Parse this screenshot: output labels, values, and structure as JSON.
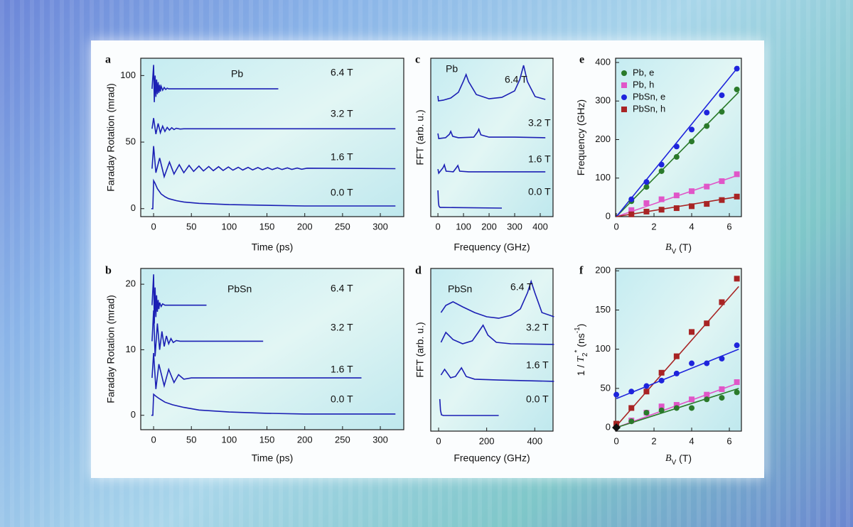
{
  "chart_data": [
    {
      "type": "line",
      "panel": "a",
      "annotation": "Pb",
      "y_label": "Faraday Rotation (mrad)",
      "x_label": "Time (ps)",
      "xlim": [
        -17,
        331
      ],
      "xticks": [
        0,
        50,
        100,
        150,
        200,
        250,
        300
      ],
      "ylim": [
        -6,
        113
      ],
      "yticks": [
        0,
        50,
        100
      ],
      "series": [
        {
          "name": "6.4 T",
          "x": [
            -2,
            0,
            1,
            2,
            3,
            4,
            5,
            6,
            7,
            8,
            9,
            10,
            12,
            14,
            16,
            18,
            20,
            25,
            30,
            40,
            60,
            100,
            165
          ],
          "values": [
            90,
            108,
            80,
            100,
            84,
            97,
            86,
            95,
            87,
            93,
            88,
            92,
            89,
            91,
            89.5,
            90.5,
            90,
            90,
            90,
            90,
            90,
            90,
            90
          ]
        },
        {
          "name": "3.2 T",
          "x": [
            -2,
            0,
            3,
            6,
            9,
            12,
            15,
            18,
            21,
            24,
            27,
            30,
            35,
            40,
            50,
            60,
            80,
            320
          ],
          "values": [
            60,
            68,
            56,
            64,
            57,
            62,
            58,
            61,
            59,
            60.8,
            59.4,
            60.4,
            59.8,
            60,
            60,
            60,
            60,
            60
          ]
        },
        {
          "name": "1.6 T",
          "x": [
            -2,
            0,
            3,
            8,
            14,
            21,
            27,
            34,
            40,
            47,
            53,
            60,
            66,
            73,
            79,
            86,
            92,
            99,
            105,
            112,
            118,
            125,
            131,
            138,
            144,
            151,
            157,
            164,
            170,
            177,
            183,
            190,
            196,
            203,
            320
          ],
          "values": [
            30,
            47,
            27,
            38,
            24,
            35,
            26,
            33,
            27,
            32.5,
            28,
            32,
            28.3,
            31.7,
            28.5,
            31.5,
            28.7,
            31.3,
            28.9,
            31.1,
            29,
            31,
            29.1,
            30.9,
            29.2,
            30.8,
            29.3,
            30.7,
            29.4,
            30.6,
            29.5,
            30.5,
            29.6,
            30.4,
            30
          ]
        },
        {
          "name": "0.0 T",
          "x": [
            -3,
            -1,
            0,
            2,
            5,
            10,
            15,
            20,
            30,
            40,
            60,
            80,
            100,
            150,
            200,
            250,
            320
          ],
          "values": [
            0,
            0,
            21,
            19,
            15,
            11,
            9,
            7.5,
            6,
            5,
            4,
            3.5,
            3,
            2.5,
            2,
            2,
            2
          ]
        }
      ]
    },
    {
      "type": "line",
      "panel": "b",
      "annotation": "PbSn",
      "y_label": "Faraday Rotation (mrad)",
      "x_label": "Time (ps)",
      "xlim": [
        -17,
        331
      ],
      "xticks": [
        0,
        50,
        100,
        150,
        200,
        250,
        300
      ],
      "ylim": [
        -2.2,
        22.4
      ],
      "yticks": [
        0,
        10,
        20
      ],
      "series": [
        {
          "name": "6.4 T",
          "x": [
            -2,
            0,
            1,
            2,
            3,
            4,
            5,
            6,
            7,
            8,
            10,
            12,
            15,
            20,
            70
          ],
          "values": [
            16.8,
            21.5,
            14,
            19.5,
            15,
            18.3,
            15.8,
            17.6,
            16.2,
            17.2,
            16.6,
            17,
            16.8,
            16.8,
            16.8
          ]
        },
        {
          "name": "3.2 T",
          "x": [
            -2,
            0,
            2,
            5,
            8,
            11,
            14,
            17,
            20,
            23,
            26,
            30,
            35,
            145
          ],
          "values": [
            11.3,
            16,
            9,
            14,
            10,
            12.8,
            10.5,
            12.1,
            10.9,
            11.7,
            11.1,
            11.4,
            11.3,
            11.3
          ]
        },
        {
          "name": "1.6 T",
          "x": [
            -2,
            0,
            3,
            7,
            14,
            20,
            27,
            33,
            40,
            50,
            60,
            275
          ],
          "values": [
            5.7,
            9.5,
            4,
            7.8,
            4.5,
            7,
            5,
            6.2,
            5.5,
            5.7,
            5.7,
            5.7
          ]
        },
        {
          "name": "0.0 T",
          "x": [
            -3,
            -1,
            0,
            3,
            8,
            15,
            25,
            40,
            60,
            100,
            150,
            200,
            320
          ],
          "values": [
            0,
            0,
            3.2,
            2.9,
            2.5,
            2,
            1.6,
            1.2,
            0.8,
            0.5,
            0.3,
            0.2,
            0.2
          ]
        }
      ]
    },
    {
      "type": "line",
      "panel": "c",
      "annotation": "Pb",
      "y_label": "FFT (arb. u.)",
      "x_label": "Frequency (GHz)",
      "xlim": [
        -28,
        450
      ],
      "xticks": [
        0,
        100,
        200,
        300,
        400
      ],
      "ylim": [
        0,
        100
      ],
      "series": [
        {
          "name": "6.4 T",
          "x": [
            0,
            2,
            20,
            50,
            80,
            100,
            110,
            120,
            150,
            200,
            250,
            300,
            320,
            335,
            350,
            380,
            420
          ],
          "values": [
            76.2,
            73.1,
            73.5,
            74.9,
            78.5,
            85.7,
            89.7,
            85.2,
            77.1,
            74.4,
            75.3,
            79.4,
            86.5,
            95.5,
            85.2,
            75.8,
            74.0
          ]
        },
        {
          "name": "3.2 T",
          "x": [
            0,
            3,
            30,
            45,
            50,
            58,
            80,
            140,
            155,
            160,
            168,
            200,
            300,
            420
          ],
          "values": [
            52.5,
            49.3,
            49.8,
            52.0,
            53.8,
            50.7,
            49.8,
            50.2,
            53.4,
            55.2,
            51.6,
            50.2,
            50.2,
            49.8
          ]
        },
        {
          "name": "1.6 T",
          "x": [
            0,
            3,
            20,
            25,
            32,
            60,
            72,
            78,
            85,
            120,
            420
          ],
          "values": [
            30.0,
            27.4,
            30.9,
            32.7,
            28.7,
            28.3,
            30.9,
            32.3,
            28.7,
            28.3,
            28.3
          ]
        },
        {
          "name": "0.0 T",
          "x": [
            0,
            2,
            4,
            8,
            20,
            250
          ],
          "values": [
            16.6,
            9.0,
            6.7,
            5.8,
            5.8,
            5.4
          ]
        }
      ]
    },
    {
      "type": "line",
      "panel": "d",
      "annotation": "PbSn",
      "y_label": "FFT (arb. u.)",
      "x_label": "Frequency (GHz)",
      "xlim": [
        -32.6,
        476
      ],
      "xticks": [
        0,
        200,
        400
      ],
      "ylim": [
        0,
        100
      ],
      "series": [
        {
          "name": "6.4 T",
          "x": [
            10,
            30,
            60,
            100,
            150,
            200,
            250,
            300,
            340,
            370,
            385,
            400,
            430,
            480
          ],
          "values": [
            72.9,
            77.3,
            79.5,
            76.4,
            72.9,
            70.3,
            69.4,
            71.2,
            75.1,
            85.2,
            92.1,
            85.2,
            72.9,
            70.3
          ]
        },
        {
          "name": "3.2 T",
          "x": [
            10,
            30,
            60,
            100,
            140,
            165,
            185,
            205,
            240,
            300,
            480
          ],
          "values": [
            54.6,
            60.7,
            56.3,
            53.7,
            55.5,
            60.7,
            65.1,
            59.0,
            54.6,
            53.7,
            53.3
          ]
        },
        {
          "name": "1.6 T",
          "x": [
            10,
            25,
            50,
            70,
            95,
            115,
            150,
            250,
            480
          ],
          "values": [
            34.5,
            38.0,
            32.8,
            33.6,
            38.9,
            33.6,
            31.9,
            31.4,
            30.6
          ]
        },
        {
          "name": "0.0 T",
          "x": [
            5,
            8,
            12,
            20,
            250
          ],
          "values": [
            19.7,
            12.7,
            10.0,
            9.6,
            9.6
          ]
        }
      ]
    },
    {
      "type": "scatter",
      "panel": "e",
      "y_label": [
        "Frequency (GHz)"
      ],
      "x_label": [
        "B",
        "V",
        " (T)"
      ],
      "legend": "upper left",
      "xlim": [
        -0.04,
        6.64
      ],
      "xticks": [
        0,
        2,
        4,
        6
      ],
      "ylim": [
        0,
        411
      ],
      "yticks": [
        0,
        100,
        200,
        300,
        400
      ],
      "series": [
        {
          "name": "Pb, e",
          "color": "#2a7a2a",
          "marker": "circle",
          "x": [
            0.8,
            1.6,
            2.4,
            3.2,
            4.0,
            4.8,
            5.6,
            6.4
          ],
          "values": [
            40,
            77,
            118,
            155,
            195,
            235,
            272,
            330
          ],
          "fit": {
            "x": [
              0,
              6.5
            ],
            "values": [
              0,
              323
            ]
          }
        },
        {
          "name": "Pb, h",
          "color": "#e056c8",
          "marker": "square",
          "x": [
            0.8,
            1.6,
            2.4,
            3.2,
            4.0,
            4.8,
            5.6,
            6.4
          ],
          "values": [
            17,
            35,
            45,
            55,
            66,
            78,
            92,
            110
          ],
          "fit": {
            "x": [
              0,
              6.5
            ],
            "values": [
              0,
              108
            ]
          }
        },
        {
          "name": "PbSn, e",
          "color": "#1e24dc",
          "marker": "circle",
          "x": [
            0.8,
            1.6,
            2.4,
            3.2,
            4.0,
            4.8,
            5.6,
            6.4
          ],
          "values": [
            45,
            90,
            135,
            182,
            226,
            270,
            315,
            384
          ],
          "fit": {
            "x": [
              0,
              6.5
            ],
            "values": [
              0,
              390
            ]
          }
        },
        {
          "name": "PbSn, h",
          "color": "#a82424",
          "marker": "square",
          "x": [
            0.8,
            1.6,
            2.4,
            3.2,
            4.0,
            4.8,
            5.6,
            6.4
          ],
          "values": [
            6,
            13,
            18,
            22,
            27,
            33,
            43,
            52
          ],
          "fit": {
            "x": [
              0,
              6.5
            ],
            "values": [
              0,
              52
            ]
          }
        }
      ]
    },
    {
      "type": "scatter",
      "panel": "f",
      "y_label": [
        "1 / ",
        "T",
        "2",
        "*",
        " (ns",
        "-1",
        ")"
      ],
      "x_label": [
        "B",
        "V",
        " (T)"
      ],
      "xlim": [
        -0.04,
        6.64
      ],
      "xticks": [
        0,
        2,
        4,
        6
      ],
      "ylim": [
        -4.5,
        203
      ],
      "yticks": [
        0,
        50,
        100,
        150,
        200
      ],
      "series": [
        {
          "color": "#a82424",
          "marker": "square",
          "x": [
            0,
            0.8,
            1.6,
            2.4,
            3.2,
            4.0,
            4.8,
            5.6,
            6.4
          ],
          "values": [
            5,
            25,
            46,
            70,
            91,
            122,
            133,
            160,
            190
          ],
          "fit": {
            "x": [
              0,
              6.5
            ],
            "values": [
              2,
              180
            ]
          }
        },
        {
          "color": "#1e24dc",
          "marker": "circle",
          "x": [
            0,
            0.8,
            1.6,
            2.4,
            3.2,
            4.0,
            4.8,
            5.6,
            6.4
          ],
          "values": [
            42,
            46,
            53,
            60,
            69,
            82,
            82,
            88,
            105
          ],
          "fit": {
            "x": [
              0,
              6.5
            ],
            "values": [
              37,
              100
            ]
          }
        },
        {
          "color": "#e056c8",
          "marker": "square",
          "x": [
            0.8,
            1.6,
            2.4,
            3.2,
            4.0,
            4.8,
            5.6,
            6.4
          ],
          "values": [
            9,
            19,
            27,
            29,
            36,
            42,
            49,
            58
          ],
          "fit": {
            "x": [
              0,
              6.5
            ],
            "values": [
              0,
              57
            ]
          }
        },
        {
          "color": "#2a7a2a",
          "marker": "circle",
          "x": [
            0.8,
            1.6,
            2.4,
            3.2,
            4.0,
            4.8,
            5.6,
            6.4
          ],
          "values": [
            8,
            19,
            22,
            25,
            25,
            36,
            38,
            45
          ],
          "fit": {
            "x": [
              0,
              6.5
            ],
            "values": [
              0,
              50
            ]
          }
        },
        {
          "color": "#111111",
          "marker": "diamond",
          "x": [
            0
          ],
          "values": [
            0
          ]
        }
      ]
    }
  ]
}
